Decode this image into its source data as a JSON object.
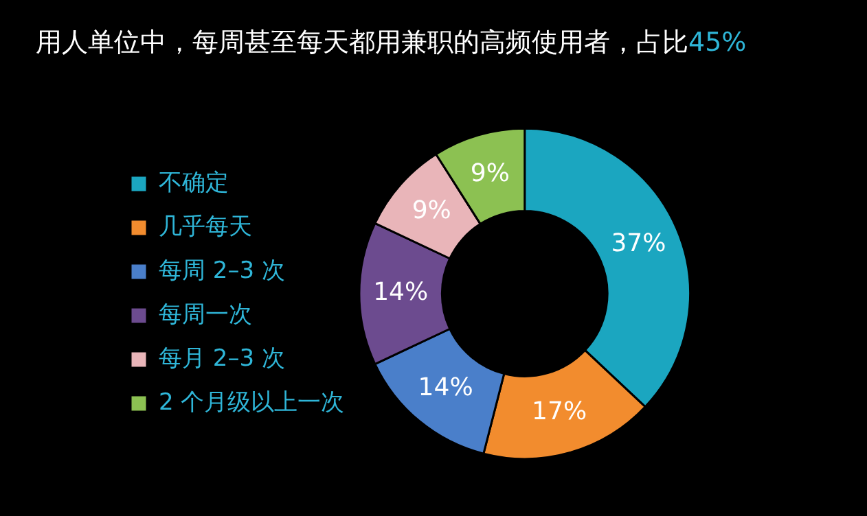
{
  "chart_data": {
    "type": "donut",
    "title": "用人单位中，每周甚至每天都用兼职的高频使用者，占比45%",
    "categories": [
      "不确定",
      "几乎每天",
      "每周 2–3 次",
      "每周一次",
      "每月 2–3 次",
      "2 个月级以上一次"
    ],
    "values": [
      37,
      17,
      14,
      14,
      9,
      9
    ],
    "value_labels": [
      "37%",
      "17%",
      "14%",
      "14%",
      "9%",
      "9%"
    ],
    "colors": [
      "#1ba6c0",
      "#f28c2e",
      "#4a7fca",
      "#6c4b8f",
      "#e9b5b9",
      "#8cc152"
    ],
    "legend": "left"
  }
}
